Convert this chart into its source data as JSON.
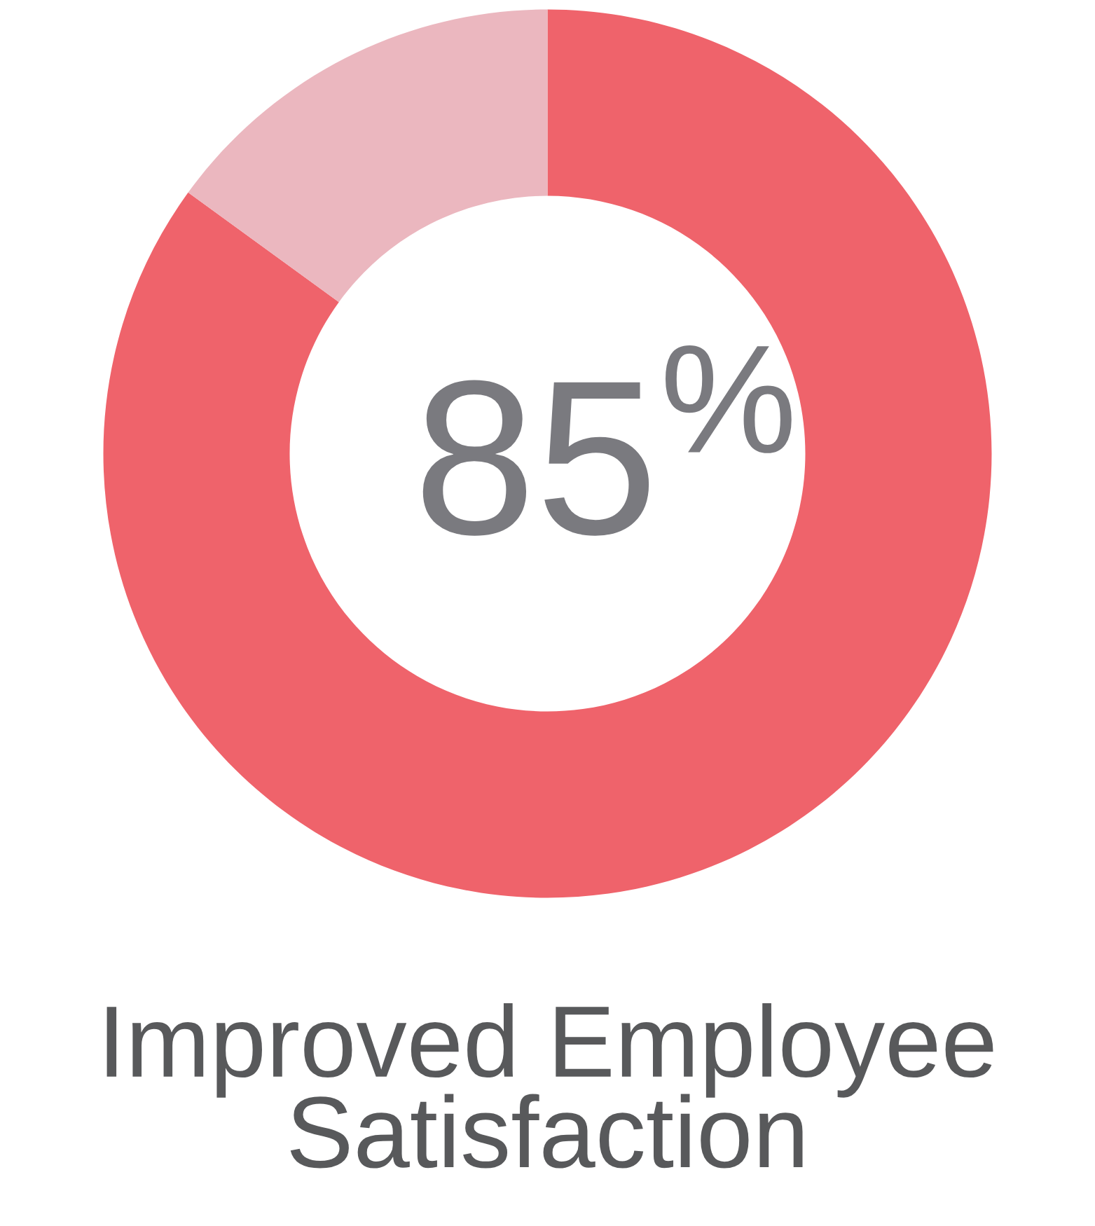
{
  "chart_data": {
    "type": "donut",
    "title": "Improved Employee\nSatisfaction",
    "categories": [
      null,
      null
    ],
    "values": [
      85,
      15
    ],
    "colors": [
      "#ef636b",
      "#ebb7bf"
    ],
    "value_labels": [
      "85$^{%}$",
      null
    ]
  }
}
